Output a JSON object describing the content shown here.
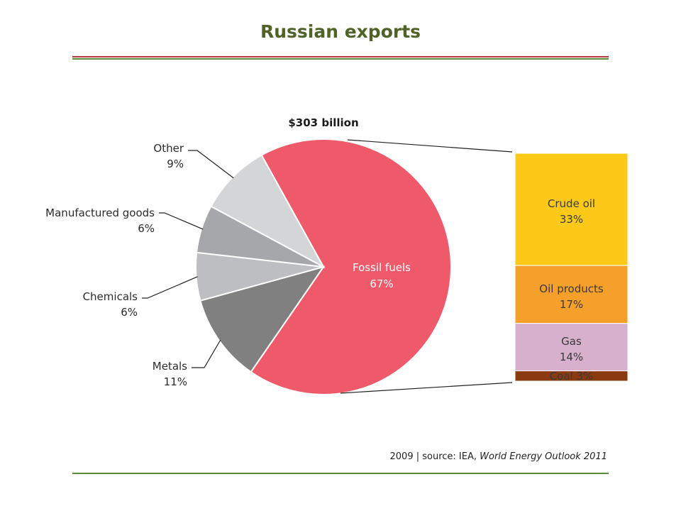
{
  "page": {
    "title": "Russian exports",
    "title_color": "#4f6228",
    "source_prefix": "2009 | source: IEA, ",
    "source_title": "World Energy Outlook 2011"
  },
  "chart_data": [
    {
      "type": "pie",
      "title": "$303 billion",
      "slices": [
        {
          "label": "Fossil fuels",
          "value": 67,
          "value_label": "67%",
          "color": "#ef5a6a"
        },
        {
          "label": "Metals",
          "value": 11,
          "value_label": "11%",
          "color": "#808080"
        },
        {
          "label": "Chemicals",
          "value": 6,
          "value_label": "6%",
          "color": "#bdbec1"
        },
        {
          "label": "Manufactured goods",
          "value": 6,
          "value_label": "6%",
          "color": "#a6a7ab"
        },
        {
          "label": "Other",
          "value": 9,
          "value_label": "9%",
          "color": "#d4d5d7"
        }
      ]
    },
    {
      "type": "bar",
      "stacked": true,
      "parent": "Fossil fuels",
      "segments": [
        {
          "label": "Crude oil",
          "value": 33,
          "value_label": "33%",
          "color": "#fcc918"
        },
        {
          "label": "Oil products",
          "value": 17,
          "value_label": "17%",
          "color": "#f5a02a"
        },
        {
          "label": "Gas",
          "value": 14,
          "value_label": "14%",
          "color": "#d6b0cd"
        },
        {
          "label": "Coal",
          "value": 3,
          "value_label": "3%",
          "color": "#8b3a10"
        }
      ]
    }
  ]
}
